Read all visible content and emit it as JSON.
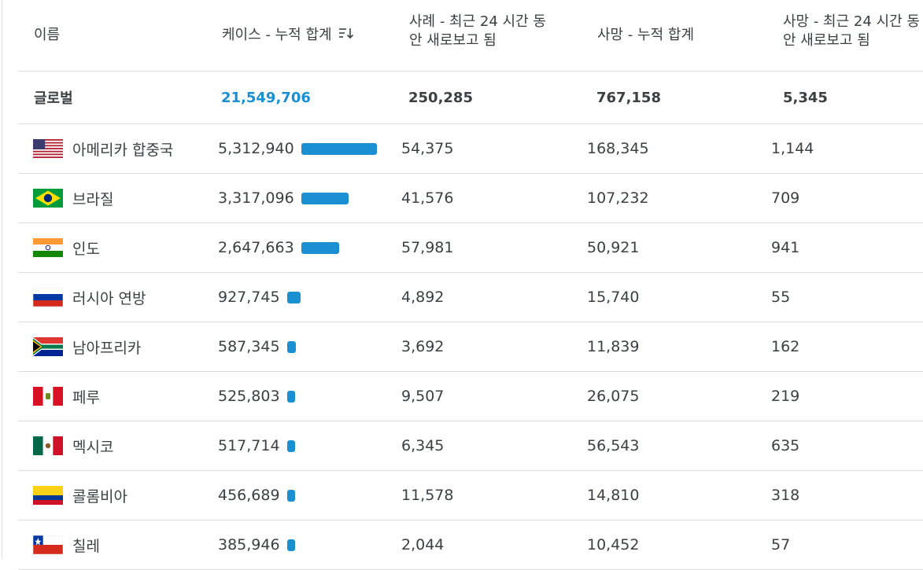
{
  "header": {
    "name": "이름",
    "cases_total": "케이스 - 누적 합계",
    "cases_new": "사례 - 최근 24 시간 동안 새로보고 됨",
    "deaths_total": "사망 - 누적 합계",
    "deaths_new": "사망 - 최근 24 시간 동안 새로보고 됨"
  },
  "global": {
    "name": "글로벌",
    "cases_total": "21,549,706",
    "cases_new": "250,285",
    "deaths_total": "767,158",
    "deaths_new": "5,345"
  },
  "colors": {
    "accent": "#1a8fd1",
    "text": "#3c4043",
    "divider": "#dadce0"
  },
  "rows": [
    {
      "flag": "flag-united-states-icon",
      "name": "아메리카 합중국",
      "cases_total": "5,312,940",
      "cases_new": "54,375",
      "deaths_total": "168,345",
      "deaths_new": "1,144",
      "bar_fraction": 1.0
    },
    {
      "flag": "flag-brazil-icon",
      "name": "브라질",
      "cases_total": "3,317,096",
      "cases_new": "41,576",
      "deaths_total": "107,232",
      "deaths_new": "709",
      "bar_fraction": 0.624
    },
    {
      "flag": "flag-india-icon",
      "name": "인도",
      "cases_total": "2,647,663",
      "cases_new": "57,981",
      "deaths_total": "50,921",
      "deaths_new": "941",
      "bar_fraction": 0.498
    },
    {
      "flag": "flag-russia-icon",
      "name": "러시아 연방",
      "cases_total": "927,745",
      "cases_new": "4,892",
      "deaths_total": "15,740",
      "deaths_new": "55",
      "bar_fraction": 0.175
    },
    {
      "flag": "flag-south-africa-icon",
      "name": "남아프리카",
      "cases_total": "587,345",
      "cases_new": "3,692",
      "deaths_total": "11,839",
      "deaths_new": "162",
      "bar_fraction": 0.11
    },
    {
      "flag": "flag-peru-icon",
      "name": "페루",
      "cases_total": "525,803",
      "cases_new": "9,507",
      "deaths_total": "26,075",
      "deaths_new": "219",
      "bar_fraction": 0.099
    },
    {
      "flag": "flag-mexico-icon",
      "name": "멕시코",
      "cases_total": "517,714",
      "cases_new": "6,345",
      "deaths_total": "56,543",
      "deaths_new": "635",
      "bar_fraction": 0.097
    },
    {
      "flag": "flag-colombia-icon",
      "name": "콜롬비아",
      "cases_total": "456,689",
      "cases_new": "11,578",
      "deaths_total": "14,810",
      "deaths_new": "318",
      "bar_fraction": 0.086
    },
    {
      "flag": "flag-chile-icon",
      "name": "칠레",
      "cases_total": "385,946",
      "cases_new": "2,044",
      "deaths_total": "10,452",
      "deaths_new": "57",
      "bar_fraction": 0.073
    }
  ]
}
